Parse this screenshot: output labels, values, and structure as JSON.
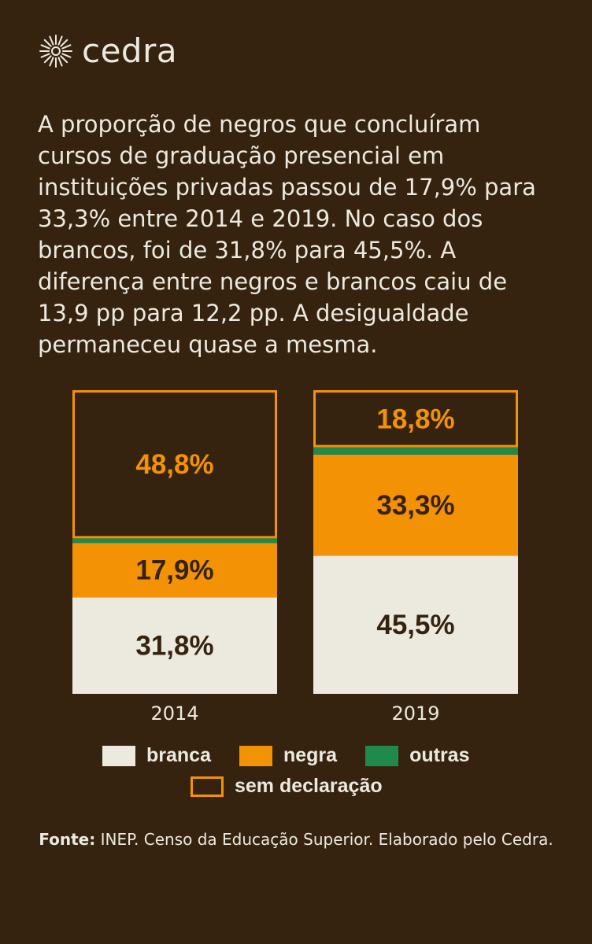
{
  "brand": {
    "name": "cedra",
    "logo_icon": "sunburst-icon"
  },
  "intro_text": "A proporção de negros que concluíram cursos de graduação presencial em instituições privadas passou de 17,9% para 33,3% entre 2014 e 2019. No caso dos brancos, foi de 31,8% para 45,5%. A diferença entre negros e brancos caiu de 13,9 pp para 12,2 pp. A desigualdade permaneceu quase a mesma.",
  "colors": {
    "background": "#36230f",
    "branca": "#ece9df",
    "negra": "#f39205",
    "outras": "#1f8a4c",
    "sem_declaracao": "#f39205",
    "dark_text": "#36230f"
  },
  "chart_data": {
    "type": "bar",
    "stacked": true,
    "categories": [
      "2014",
      "2019"
    ],
    "series": [
      {
        "name": "branca",
        "values": [
          31.8,
          45.5
        ],
        "labels": [
          "31,8%",
          "45,5%"
        ]
      },
      {
        "name": "negra",
        "values": [
          17.9,
          33.3
        ],
        "labels": [
          "17,9%",
          "33,3%"
        ]
      },
      {
        "name": "outras",
        "values": [
          1.5,
          2.4
        ],
        "labels": [
          "",
          ""
        ]
      },
      {
        "name": "sem declaração",
        "values": [
          48.8,
          18.8
        ],
        "labels": [
          "48,8%",
          "18,8%"
        ]
      }
    ],
    "ylim": [
      0,
      100
    ],
    "legend_position": "bottom",
    "grid": false
  },
  "legend": {
    "branca": "branca",
    "negra": "negra",
    "outras": "outras",
    "sem_declaracao": "sem declaração"
  },
  "source": {
    "label": "Fonte:",
    "text": "INEP. Censo da Educação Superior. Elaborado pelo Cedra."
  }
}
